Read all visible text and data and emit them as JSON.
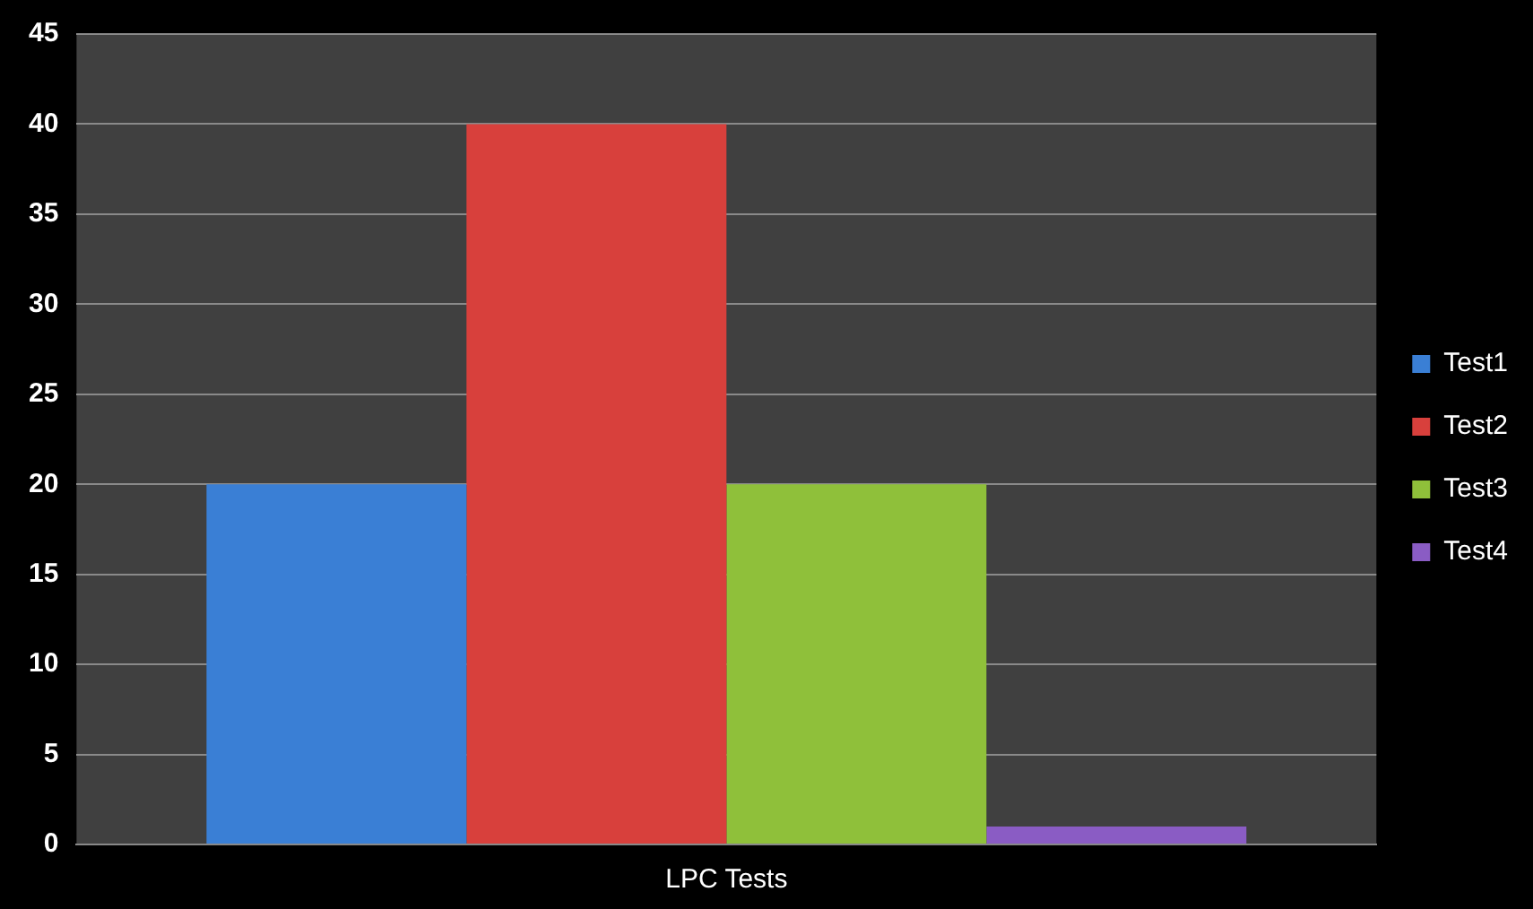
{
  "chart_data": {
    "type": "bar",
    "categories": [
      "LPC Tests"
    ],
    "series": [
      {
        "name": "Test1",
        "color": "#3a7fd5",
        "values": [
          20
        ]
      },
      {
        "name": "Test2",
        "color": "#d8403c",
        "values": [
          40
        ]
      },
      {
        "name": "Test3",
        "color": "#8fc03a",
        "values": [
          20
        ]
      },
      {
        "name": "Test4",
        "color": "#8a5cc4",
        "values": [
          1
        ]
      }
    ],
    "ylim": [
      0,
      45
    ],
    "yticks": [
      0,
      5,
      10,
      15,
      20,
      25,
      30,
      35,
      40,
      45
    ],
    "grid": "y",
    "legend": "right"
  }
}
